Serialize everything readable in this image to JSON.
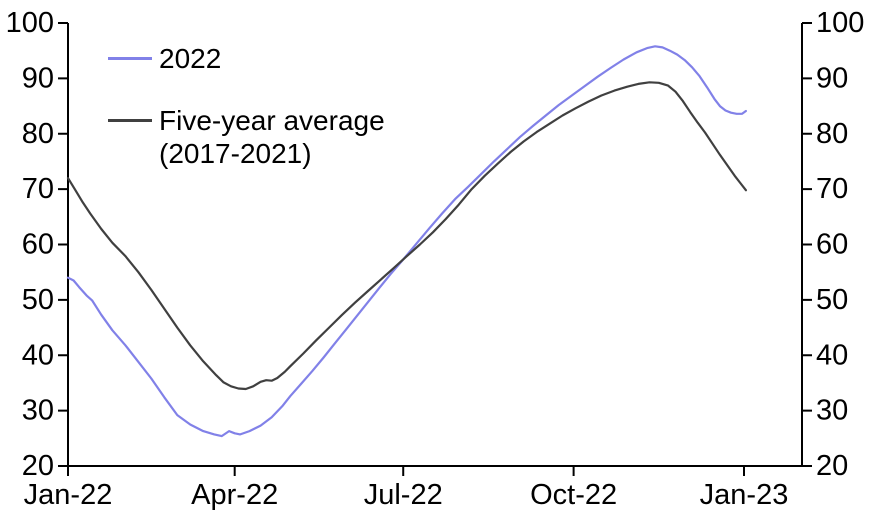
{
  "chart_data": {
    "type": "line",
    "title": "",
    "xlabel": "",
    "ylabel": "",
    "ylim": [
      20,
      100
    ],
    "grid": false,
    "legend_position": "top-left-inside",
    "axis_color": "#000000",
    "background_color": "#ffffff",
    "y_ticks": [
      100,
      90,
      80,
      70,
      60,
      50,
      40,
      30,
      20
    ],
    "y_axis_sides": [
      "left",
      "right"
    ],
    "x_ticks": [
      {
        "label": "Jan-22",
        "day": 0
      },
      {
        "label": "Apr-22",
        "day": 90
      },
      {
        "label": "Jul-22",
        "day": 181
      },
      {
        "label": "Oct-22",
        "day": 273
      },
      {
        "label": "Jan-23",
        "day": 365
      }
    ],
    "series": [
      {
        "name": "2022",
        "color": "#8181e8",
        "points": [
          [
            0,
            54.0
          ],
          [
            3,
            53.5
          ],
          [
            6,
            52.3
          ],
          [
            10,
            50.8
          ],
          [
            13,
            49.9
          ],
          [
            18,
            47.3
          ],
          [
            24,
            44.5
          ],
          [
            31,
            41.8
          ],
          [
            38,
            38.8
          ],
          [
            45,
            35.8
          ],
          [
            52,
            32.4
          ],
          [
            59,
            29.2
          ],
          [
            66,
            27.5
          ],
          [
            73,
            26.3
          ],
          [
            79,
            25.7
          ],
          [
            83,
            25.4
          ],
          [
            87,
            26.3
          ],
          [
            90,
            25.9
          ],
          [
            93,
            25.7
          ],
          [
            98,
            26.3
          ],
          [
            104,
            27.3
          ],
          [
            110,
            28.8
          ],
          [
            116,
            30.9
          ],
          [
            120,
            32.6
          ],
          [
            126,
            34.9
          ],
          [
            132,
            37.2
          ],
          [
            138,
            39.6
          ],
          [
            144,
            42.1
          ],
          [
            150,
            44.6
          ],
          [
            156,
            47.1
          ],
          [
            162,
            49.6
          ],
          [
            168,
            52.1
          ],
          [
            174,
            54.6
          ],
          [
            181,
            57.3
          ],
          [
            188,
            60.1
          ],
          [
            195,
            62.9
          ],
          [
            202,
            65.6
          ],
          [
            209,
            68.2
          ],
          [
            216,
            70.4
          ],
          [
            223,
            72.7
          ],
          [
            230,
            75.0
          ],
          [
            237,
            77.2
          ],
          [
            244,
            79.4
          ],
          [
            251,
            81.4
          ],
          [
            258,
            83.3
          ],
          [
            265,
            85.2
          ],
          [
            272,
            86.9
          ],
          [
            279,
            88.6
          ],
          [
            286,
            90.3
          ],
          [
            293,
            91.9
          ],
          [
            300,
            93.4
          ],
          [
            307,
            94.7
          ],
          [
            313,
            95.5
          ],
          [
            317,
            95.8
          ],
          [
            321,
            95.6
          ],
          [
            325,
            95.0
          ],
          [
            329,
            94.3
          ],
          [
            333,
            93.3
          ],
          [
            337,
            92.0
          ],
          [
            341,
            90.4
          ],
          [
            345,
            88.4
          ],
          [
            349,
            86.3
          ],
          [
            352,
            85.0
          ],
          [
            355,
            84.2
          ],
          [
            358,
            83.8
          ],
          [
            361,
            83.6
          ],
          [
            364,
            83.6
          ],
          [
            366,
            84.1
          ]
        ]
      },
      {
        "name": "Five-year average (2017-2021)",
        "color": "#404040",
        "points": [
          [
            0,
            72.0
          ],
          [
            4,
            69.8
          ],
          [
            8,
            67.6
          ],
          [
            12,
            65.6
          ],
          [
            18,
            62.8
          ],
          [
            24,
            60.3
          ],
          [
            31,
            57.9
          ],
          [
            38,
            55.0
          ],
          [
            45,
            51.8
          ],
          [
            52,
            48.4
          ],
          [
            59,
            45.0
          ],
          [
            66,
            41.8
          ],
          [
            73,
            38.9
          ],
          [
            80,
            36.4
          ],
          [
            84,
            35.1
          ],
          [
            88,
            34.4
          ],
          [
            92,
            34.0
          ],
          [
            96,
            33.9
          ],
          [
            100,
            34.4
          ],
          [
            104,
            35.2
          ],
          [
            107,
            35.5
          ],
          [
            110,
            35.4
          ],
          [
            113,
            35.9
          ],
          [
            117,
            37.0
          ],
          [
            120,
            38.0
          ],
          [
            127,
            40.3
          ],
          [
            134,
            42.7
          ],
          [
            141,
            45.0
          ],
          [
            148,
            47.3
          ],
          [
            155,
            49.5
          ],
          [
            162,
            51.6
          ],
          [
            169,
            53.7
          ],
          [
            176,
            55.8
          ],
          [
            183,
            57.9
          ],
          [
            190,
            60.0
          ],
          [
            197,
            62.2
          ],
          [
            204,
            64.6
          ],
          [
            211,
            67.2
          ],
          [
            218,
            70.0
          ],
          [
            225,
            72.4
          ],
          [
            232,
            74.6
          ],
          [
            239,
            76.7
          ],
          [
            246,
            78.6
          ],
          [
            253,
            80.3
          ],
          [
            260,
            81.8
          ],
          [
            267,
            83.3
          ],
          [
            274,
            84.6
          ],
          [
            281,
            85.8
          ],
          [
            288,
            86.9
          ],
          [
            295,
            87.8
          ],
          [
            302,
            88.5
          ],
          [
            308,
            89.0
          ],
          [
            314,
            89.3
          ],
          [
            319,
            89.2
          ],
          [
            324,
            88.7
          ],
          [
            328,
            87.6
          ],
          [
            332,
            85.9
          ],
          [
            336,
            83.9
          ],
          [
            340,
            82.0
          ],
          [
            344,
            80.2
          ],
          [
            348,
            78.2
          ],
          [
            352,
            76.2
          ],
          [
            356,
            74.3
          ],
          [
            360,
            72.4
          ],
          [
            363,
            71.1
          ],
          [
            366,
            69.8
          ]
        ]
      }
    ]
  },
  "legend": {
    "entries": [
      {
        "lines": [
          "2022"
        ]
      },
      {
        "lines": [
          "Five-year average",
          "(2017-2021)"
        ]
      }
    ]
  }
}
